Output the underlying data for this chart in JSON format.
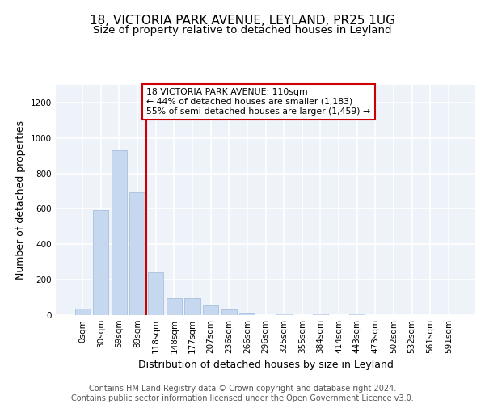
{
  "title1": "18, VICTORIA PARK AVENUE, LEYLAND, PR25 1UG",
  "title2": "Size of property relative to detached houses in Leyland",
  "xlabel": "Distribution of detached houses by size in Leyland",
  "ylabel": "Number of detached properties",
  "bar_color": "#c5d8f0",
  "bar_edge_color": "#a0b8d8",
  "categories": [
    "0sqm",
    "30sqm",
    "59sqm",
    "89sqm",
    "118sqm",
    "148sqm",
    "177sqm",
    "207sqm",
    "236sqm",
    "266sqm",
    "296sqm",
    "325sqm",
    "355sqm",
    "384sqm",
    "414sqm",
    "443sqm",
    "473sqm",
    "502sqm",
    "532sqm",
    "561sqm",
    "591sqm"
  ],
  "values": [
    35,
    595,
    930,
    695,
    240,
    95,
    95,
    55,
    30,
    15,
    0,
    10,
    0,
    10,
    0,
    10,
    0,
    0,
    0,
    0,
    0
  ],
  "ylim": [
    0,
    1300
  ],
  "yticks": [
    0,
    200,
    400,
    600,
    800,
    1000,
    1200
  ],
  "vline_x": 4.0,
  "vline_color": "#cc0000",
  "annotation_text": "18 VICTORIA PARK AVENUE: 110sqm\n← 44% of detached houses are smaller (1,183)\n55% of semi-detached houses are larger (1,459) →",
  "annotation_box_color": "#cc0000",
  "footer": "Contains HM Land Registry data © Crown copyright and database right 2024.\nContains public sector information licensed under the Open Government Licence v3.0.",
  "background_color": "#eef2f9",
  "grid_color": "#ffffff",
  "title1_fontsize": 11,
  "title2_fontsize": 9.5,
  "xlabel_fontsize": 9,
  "ylabel_fontsize": 9,
  "tick_fontsize": 7.5,
  "footer_fontsize": 7
}
